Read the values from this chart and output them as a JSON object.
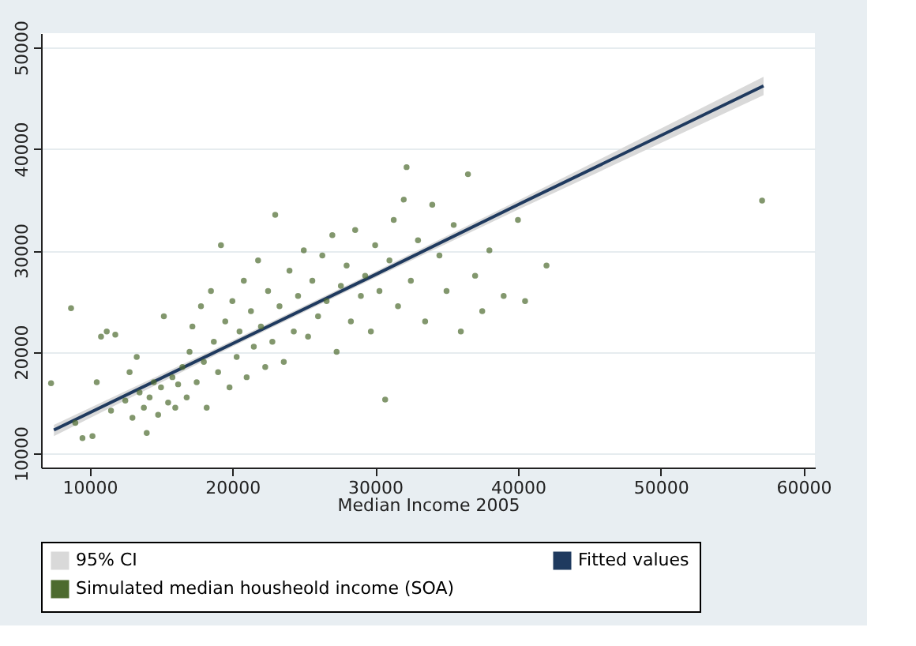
{
  "chart_data": {
    "type": "scatter",
    "xlabel": "Median Income 2005",
    "xlim": [
      6600,
      60800
    ],
    "ylim": [
      8600,
      51400
    ],
    "xticks": [
      10000,
      20000,
      30000,
      40000,
      50000,
      60000
    ],
    "yticks": [
      10000,
      20000,
      30000,
      40000,
      50000
    ],
    "grid": "y",
    "legend": "bottom",
    "marker": "circle",
    "series": [
      {
        "name": "95% CI",
        "type": "area",
        "color": "#d9d9d9"
      },
      {
        "name": "Fitted values",
        "type": "line",
        "marker": "none",
        "color": "#1f3a5f",
        "x": [
          7500,
          20000,
          30000,
          40000,
          57200
        ],
        "values": [
          12300,
          20800,
          27600,
          34500,
          46200
        ],
        "lower": [
          11700,
          20500,
          27300,
          34000,
          45300
        ],
        "upper": [
          12800,
          21100,
          27900,
          34900,
          47100
        ]
      },
      {
        "name": "Simulated median housheold income (SOA)",
        "color": "#4d6b2f",
        "x": [
          7300,
          8700,
          9000,
          9500,
          10200,
          10500,
          10800,
          11200,
          11800,
          11500,
          12500,
          12800,
          13000,
          13300,
          13500,
          13800,
          14000,
          14200,
          14500,
          14800,
          15000,
          15200,
          15500,
          15800,
          16000,
          16200,
          16500,
          16800,
          17000,
          17200,
          17500,
          17800,
          18000,
          18200,
          18500,
          18700,
          19000,
          19200,
          19500,
          19800,
          20000,
          20300,
          20500,
          20800,
          21000,
          21300,
          21500,
          21800,
          22000,
          22300,
          22500,
          22800,
          23000,
          23300,
          23600,
          24000,
          24300,
          24600,
          25000,
          25300,
          25600,
          26000,
          26300,
          26600,
          27000,
          27300,
          27600,
          28000,
          28300,
          28600,
          29000,
          29300,
          29700,
          30000,
          30300,
          30700,
          31000,
          31300,
          31600,
          32000,
          32200,
          32500,
          33000,
          33500,
          34000,
          34500,
          35000,
          35500,
          36000,
          36500,
          37000,
          37500,
          38000,
          39000,
          40000,
          40500,
          42000,
          57100
        ],
        "values": [
          16900,
          24300,
          13000,
          11500,
          11700,
          17000,
          21500,
          22000,
          21700,
          14200,
          15200,
          18000,
          13500,
          19500,
          16000,
          14500,
          12000,
          15500,
          17000,
          13800,
          16500,
          23500,
          15000,
          17500,
          14500,
          16800,
          18500,
          15500,
          20000,
          22500,
          17000,
          24500,
          19000,
          14500,
          26000,
          21000,
          18000,
          30500,
          23000,
          16500,
          25000,
          19500,
          22000,
          27000,
          17500,
          24000,
          20500,
          29000,
          22500,
          18500,
          26000,
          21000,
          33500,
          24500,
          19000,
          28000,
          22000,
          25500,
          30000,
          21500,
          27000,
          23500,
          29500,
          25000,
          31500,
          20000,
          26500,
          28500,
          23000,
          32000,
          25500,
          27500,
          22000,
          30500,
          26000,
          15300,
          29000,
          33000,
          24500,
          35000,
          38200,
          27000,
          31000,
          23000,
          34500,
          29500,
          26000,
          32500,
          22000,
          37500,
          27500,
          24000,
          30000,
          25500,
          33000,
          25000,
          28500,
          34900
        ]
      }
    ]
  }
}
